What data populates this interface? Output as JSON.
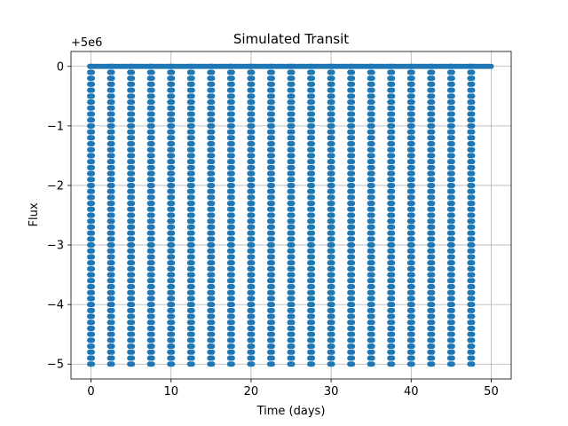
{
  "chart_data": {
    "type": "scatter",
    "title": "Simulated Transit",
    "xlabel": "Time (days)",
    "ylabel": "Flux",
    "y_offset_label": "+5e6",
    "xlim": [
      -2.5,
      52.5
    ],
    "ylim": [
      -5.25,
      0.25
    ],
    "xticks": [
      0,
      10,
      20,
      30,
      40,
      50
    ],
    "xtick_labels": [
      "0",
      "10",
      "20",
      "30",
      "40",
      "50"
    ],
    "yticks": [
      0,
      -1,
      -2,
      -3,
      -4,
      -5
    ],
    "ytick_labels": [
      "0",
      "−1",
      "−2",
      "−3",
      "−4",
      "−5"
    ],
    "grid": true,
    "marker_color": "#1f77b4",
    "series": [
      {
        "time_range": [
          0,
          50
        ],
        "baseline": 0,
        "transit_depth": -5,
        "period": 2.5,
        "first_transit": 0,
        "transit_times": [
          0,
          2.5,
          5,
          7.5,
          10,
          12.5,
          15,
          17.5,
          20,
          22.5,
          25,
          27.5,
          30,
          32.5,
          35,
          37.5,
          40,
          42.5,
          45,
          47.5
        ]
      }
    ]
  }
}
